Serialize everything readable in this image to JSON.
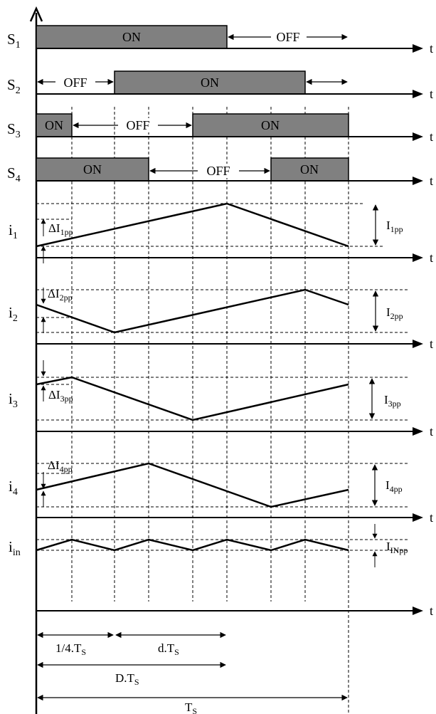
{
  "switches": [
    {
      "id": "S1",
      "main": "S",
      "sub": "1"
    },
    {
      "id": "S2",
      "main": "S",
      "sub": "2"
    },
    {
      "id": "S3",
      "main": "S",
      "sub": "3"
    },
    {
      "id": "S4",
      "main": "S",
      "sub": "4"
    }
  ],
  "states": {
    "on": "ON",
    "off": "OFF"
  },
  "currents": [
    {
      "main": "i",
      "sub": "1",
      "delta_main": "ΔI",
      "delta_sub": "1pp",
      "pp_main": "I",
      "pp_sub": "1pp"
    },
    {
      "main": "i",
      "sub": "2",
      "delta_main": "ΔI",
      "delta_sub": "2pp",
      "pp_main": "I",
      "pp_sub": "2pp"
    },
    {
      "main": "i",
      "sub": "3",
      "delta_main": "ΔI",
      "delta_sub": "3pp",
      "pp_main": "I",
      "pp_sub": "3pp"
    },
    {
      "main": "i",
      "sub": "4",
      "delta_main": "ΔI",
      "delta_sub": "4pp",
      "pp_main": "I",
      "pp_sub": "4pp"
    },
    {
      "main": "i",
      "sub": "in",
      "pp_main": "I",
      "pp_sub": "INpp"
    }
  ],
  "time_axis_label": "t",
  "dimensions": [
    {
      "main": "1/4.T",
      "sub": "S"
    },
    {
      "main": "d.T",
      "sub": "S"
    },
    {
      "main": "D.T",
      "sub": "S"
    },
    {
      "main": "T",
      "sub": "S"
    }
  ]
}
